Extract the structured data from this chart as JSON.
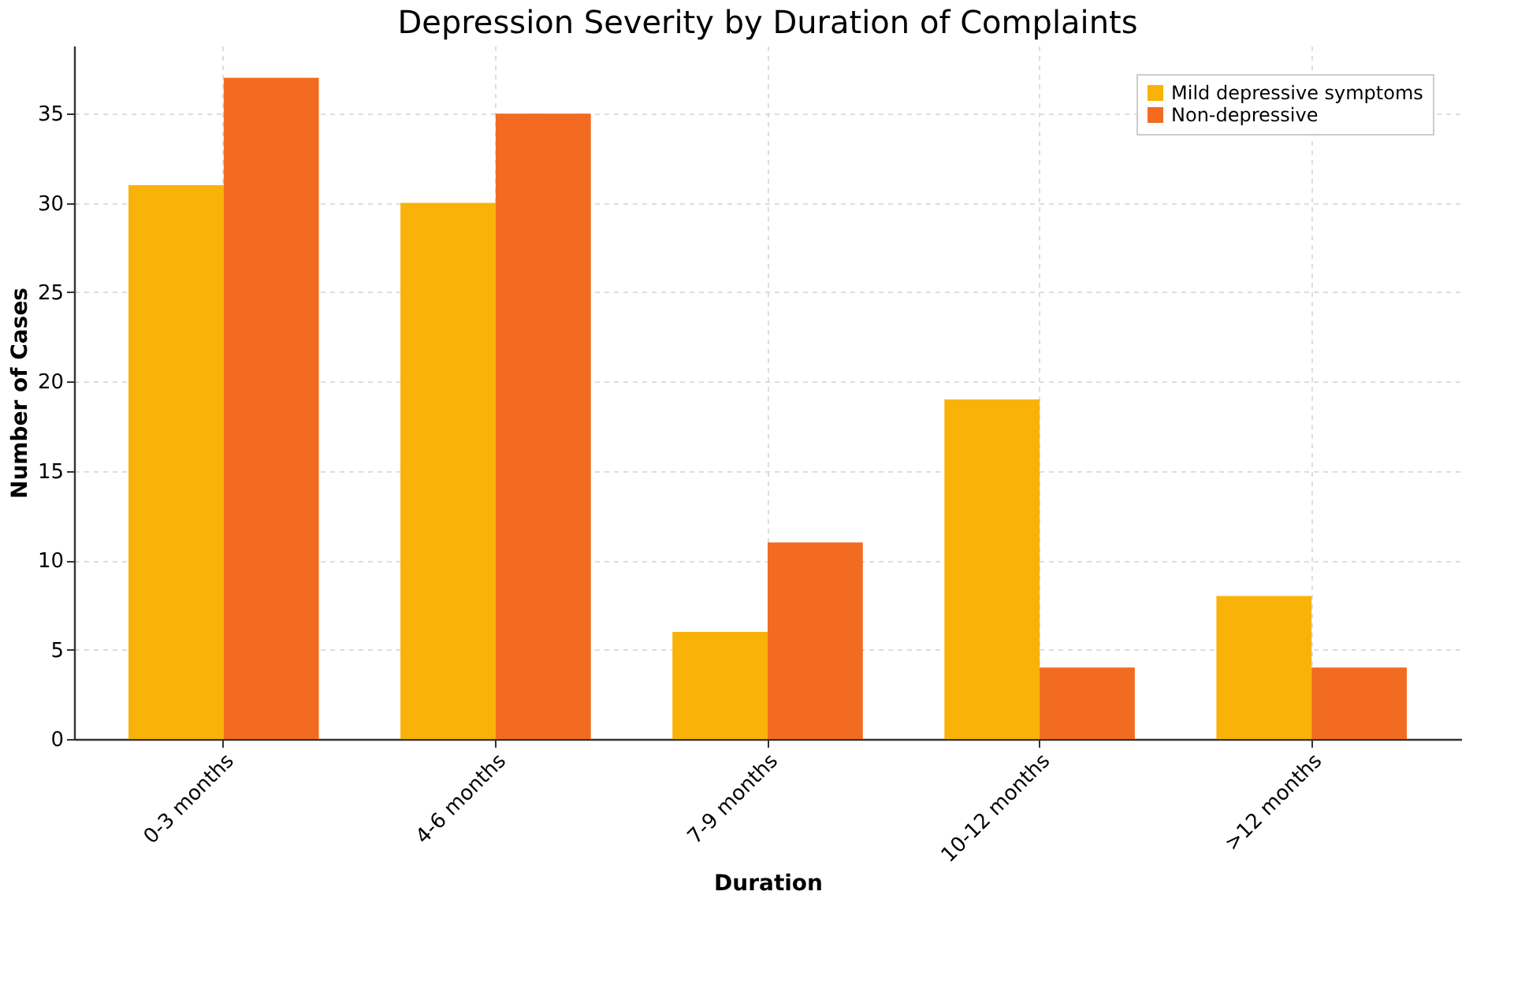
{
  "chart_data": {
    "type": "bar",
    "title": "Depression Severity by Duration of Complaints",
    "xlabel": "Duration",
    "ylabel": "Number of Cases",
    "categories": [
      "0-3 months",
      "4-6 months",
      "7-9 months",
      "10-12 months",
      ">12 months"
    ],
    "series": [
      {
        "name": "Mild depressive symptoms",
        "color": "#f9b208",
        "values": [
          31,
          30,
          6,
          19,
          8
        ]
      },
      {
        "name": "Non-depressive",
        "color": "#f26b21",
        "values": [
          37,
          35,
          11,
          4,
          4
        ]
      }
    ],
    "ylim": [
      0,
      38.8
    ],
    "yticks": [
      0,
      5,
      10,
      15,
      20,
      25,
      30,
      35
    ],
    "grid": true,
    "legend": "top right"
  }
}
